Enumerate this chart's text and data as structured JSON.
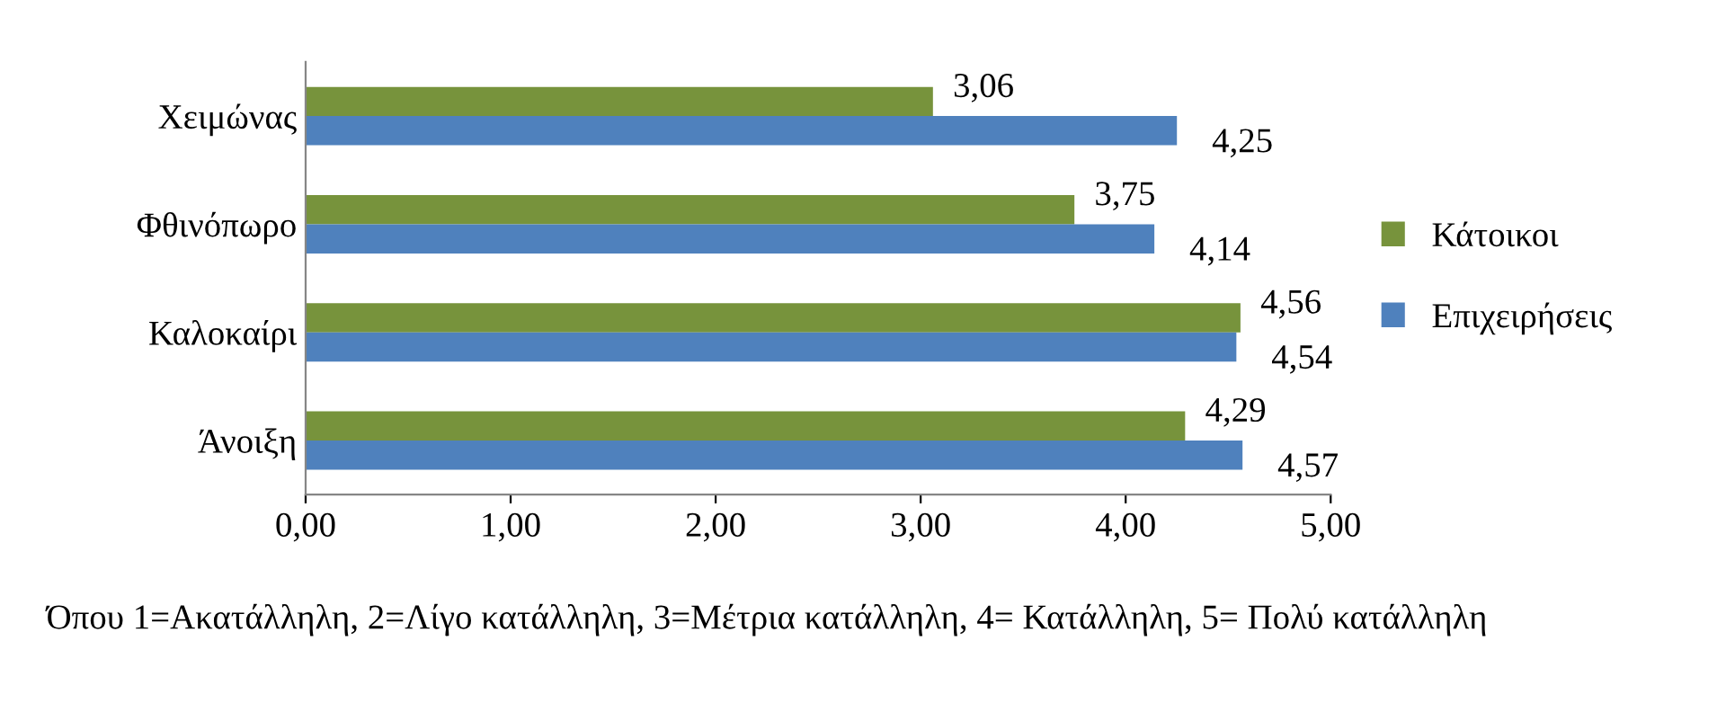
{
  "chart_data": {
    "type": "bar",
    "orientation": "horizontal",
    "categories": [
      "Χειμώνας",
      "Φθινόπωρο",
      "Καλοκαίρι",
      "Άνοιξη"
    ],
    "series": [
      {
        "name": "Κάτοικοι",
        "color": "#77933c",
        "values": [
          3.06,
          3.75,
          4.56,
          4.29
        ],
        "value_labels": [
          "3,06",
          "3,75",
          "4,56",
          "4,29"
        ]
      },
      {
        "name": "Επιχειρήσεις",
        "color": "#4f81bd",
        "values": [
          4.25,
          4.14,
          4.54,
          4.57
        ],
        "value_labels": [
          "4,25",
          "4,14",
          "4,54",
          "4,57"
        ]
      }
    ],
    "xlim": [
      0,
      5
    ],
    "xticks": [
      {
        "value": 0,
        "label": "0,00"
      },
      {
        "value": 1,
        "label": "1,00"
      },
      {
        "value": 2,
        "label": "2,00"
      },
      {
        "value": 3,
        "label": "3,00"
      },
      {
        "value": 4,
        "label": "4,00"
      },
      {
        "value": 5,
        "label": "5,00"
      }
    ],
    "legend": "right",
    "grid": false,
    "annotations": [
      "Όπου 1=Ακατάλληλη, 2=Λίγο κατάλληλη, 3=Μέτρια κατάλληλη, 4= Κατάλληλη, 5= Πολύ κατάλληλη"
    ]
  }
}
